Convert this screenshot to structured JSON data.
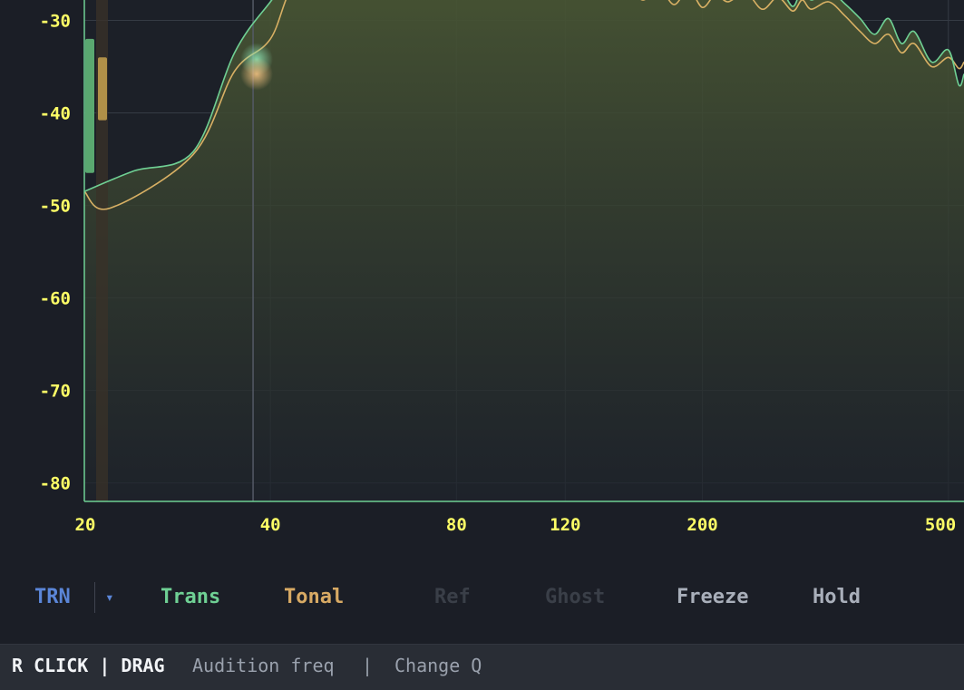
{
  "chart_data": {
    "type": "line",
    "x_scale": "log",
    "x_ticks": [
      20,
      40,
      80,
      120,
      200,
      500
    ],
    "x_tick_labels": [
      "20",
      "40",
      "80",
      "120",
      "200",
      "500"
    ],
    "y_ticks": [
      -30,
      -40,
      -50,
      -60,
      -70,
      -80
    ],
    "y_tick_labels": [
      "-30",
      "-40",
      "-50",
      "-60",
      "-70",
      "-80"
    ],
    "xlim": [
      20,
      530
    ],
    "ylim": [
      -82,
      -27.8
    ],
    "grid": true,
    "series": [
      {
        "name": "Trans",
        "color": "#6fd094",
        "x": [
          20,
          24,
          30,
          35,
          40,
          45,
          60,
          90,
          120,
          150,
          160,
          170,
          180,
          190,
          200,
          210,
          220,
          235,
          250,
          265,
          280,
          290,
          300,
          320,
          340,
          360,
          380,
          400,
          420,
          440,
          470,
          500,
          520,
          530
        ],
        "values": [
          -48.5,
          -46.3,
          -44.2,
          -33.5,
          -28,
          -24,
          -22,
          -23,
          -24,
          -25,
          -26.5,
          -25.8,
          -26.8,
          -25.5,
          -27.2,
          -26,
          -26.8,
          -25.8,
          -27.5,
          -26.2,
          -28.5,
          -26.5,
          -27.8,
          -26.8,
          -28.2,
          -29.8,
          -31.5,
          -29.8,
          -32.5,
          -31.2,
          -34.5,
          -33.2,
          -37,
          -35.8
        ]
      },
      {
        "name": "Tonal",
        "color": "#d8b064",
        "x": [
          20,
          22,
          30,
          35,
          40,
          45,
          60,
          90,
          120,
          150,
          160,
          170,
          180,
          190,
          200,
          210,
          220,
          235,
          250,
          265,
          280,
          290,
          300,
          320,
          340,
          360,
          380,
          400,
          420,
          440,
          470,
          500,
          520,
          530
        ],
        "values": [
          -48.5,
          -50.3,
          -44.5,
          -35.5,
          -32,
          -25,
          -22.5,
          -23.5,
          -24.5,
          -26,
          -27.8,
          -26.5,
          -28.3,
          -26.6,
          -28.6,
          -27.2,
          -28,
          -27,
          -28.8,
          -27.5,
          -29,
          -27.8,
          -28.8,
          -28,
          -29.5,
          -31.2,
          -32.5,
          -31.5,
          -33.5,
          -32.5,
          -35,
          -34,
          -35.2,
          -34.5
        ]
      }
    ],
    "markers": [
      {
        "name": "Trans",
        "x": 38,
        "y": -34.2,
        "color": "#6fd094"
      },
      {
        "name": "Tonal",
        "x": 38,
        "y": -35.8,
        "color": "#d8b064"
      }
    ],
    "meters": [
      {
        "name": "Trans",
        "top": -32,
        "bottom": -46.5,
        "color": "#5aa870"
      },
      {
        "name": "Tonal",
        "top": -34,
        "bottom": -40.8,
        "color": "#b09048"
      }
    ],
    "cursor_freq": 37.5
  },
  "toggles": {
    "mode": {
      "label": "TRN",
      "color": "#5b86d8"
    },
    "dropdown": {
      "label": "▾",
      "color": "#5b86d8"
    },
    "items": [
      {
        "label": "Trans",
        "color": "#6fd094"
      },
      {
        "label": "Tonal",
        "color": "#d8aa64"
      },
      {
        "label": "Ref",
        "color": "#3a3f48"
      },
      {
        "label": "Ghost",
        "color": "#3a3f48"
      },
      {
        "label": "Freeze",
        "color": "#a9afba"
      },
      {
        "label": "Hold",
        "color": "#a9afba"
      }
    ]
  },
  "statusbar": {
    "keys": "R CLICK | DRAG",
    "action1": "Audition freq",
    "divider": "|",
    "action2": "Change Q"
  }
}
